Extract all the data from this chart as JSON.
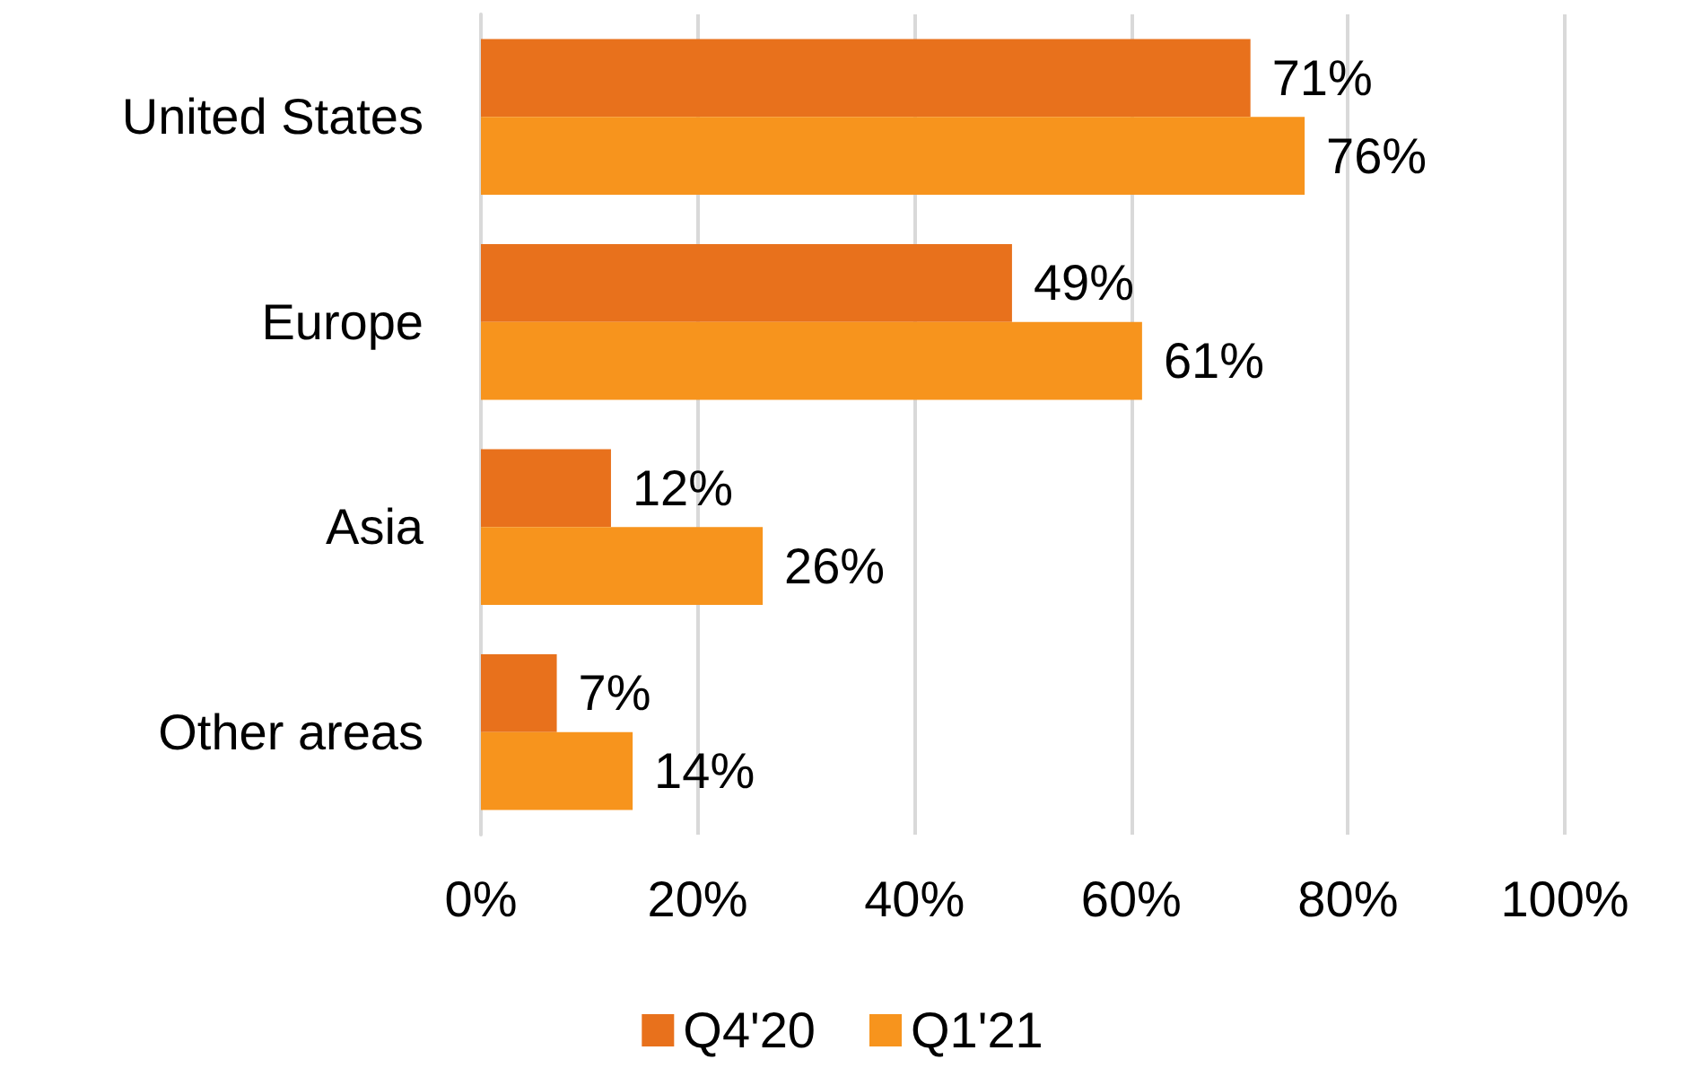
{
  "chart_data": {
    "type": "bar",
    "orientation": "horizontal",
    "categories": [
      "United States",
      "Europe",
      "Asia",
      "Other areas"
    ],
    "series": [
      {
        "name": "Q4'20",
        "color": "#e8711c",
        "values": [
          71,
          49,
          12,
          7
        ],
        "value_labels": [
          "71%",
          "49%",
          "12%",
          "7%"
        ]
      },
      {
        "name": "Q1'21",
        "color": "#f7941d",
        "values": [
          76,
          61,
          26,
          14
        ],
        "value_labels": [
          "76%",
          "61%",
          "26%",
          "14%"
        ]
      }
    ],
    "xlim": [
      0,
      100
    ],
    "xticks": [
      {
        "value": 0,
        "label": "0%"
      },
      {
        "value": 20,
        "label": "20%"
      },
      {
        "value": 40,
        "label": "40%"
      },
      {
        "value": 60,
        "label": "60%"
      },
      {
        "value": 80,
        "label": "80%"
      },
      {
        "value": 100,
        "label": "100%"
      }
    ],
    "grid": "x",
    "legend": "bottom"
  }
}
